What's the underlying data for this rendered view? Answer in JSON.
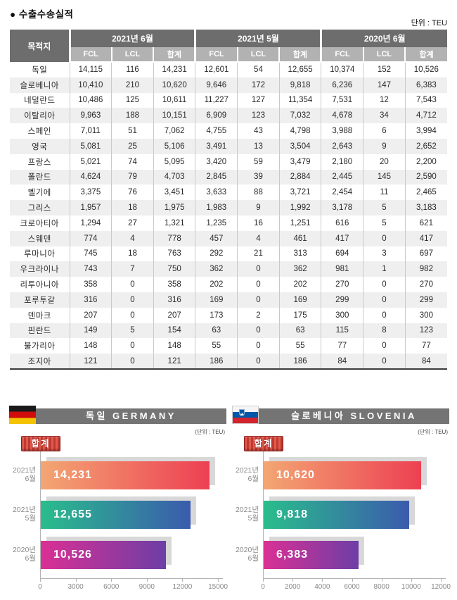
{
  "page": {
    "title": "● 수출수송실적",
    "unit": "단위 : TEU"
  },
  "table": {
    "dest_header": "목적지",
    "groups": [
      "2021년 6월",
      "2021년 5월",
      "2020년 6월"
    ],
    "sub_headers": [
      "FCL",
      "LCL",
      "합계"
    ],
    "rows": [
      {
        "dest": "독일",
        "values": [
          "14,115",
          "116",
          "14,231",
          "12,601",
          "54",
          "12,655",
          "10,374",
          "152",
          "10,526"
        ]
      },
      {
        "dest": "슬로베니아",
        "values": [
          "10,410",
          "210",
          "10,620",
          "9,646",
          "172",
          "9,818",
          "6,236",
          "147",
          "6,383"
        ]
      },
      {
        "dest": "네덜란드",
        "values": [
          "10,486",
          "125",
          "10,611",
          "11,227",
          "127",
          "11,354",
          "7,531",
          "12",
          "7,543"
        ]
      },
      {
        "dest": "이탈리아",
        "values": [
          "9,963",
          "188",
          "10,151",
          "6,909",
          "123",
          "7,032",
          "4,678",
          "34",
          "4,712"
        ]
      },
      {
        "dest": "스페인",
        "values": [
          "7,011",
          "51",
          "7,062",
          "4,755",
          "43",
          "4,798",
          "3,988",
          "6",
          "3,994"
        ]
      },
      {
        "dest": "영국",
        "values": [
          "5,081",
          "25",
          "5,106",
          "3,491",
          "13",
          "3,504",
          "2,643",
          "9",
          "2,652"
        ]
      },
      {
        "dest": "프랑스",
        "values": [
          "5,021",
          "74",
          "5,095",
          "3,420",
          "59",
          "3,479",
          "2,180",
          "20",
          "2,200"
        ]
      },
      {
        "dest": "폴란드",
        "values": [
          "4,624",
          "79",
          "4,703",
          "2,845",
          "39",
          "2,884",
          "2,445",
          "145",
          "2,590"
        ]
      },
      {
        "dest": "벨기에",
        "values": [
          "3,375",
          "76",
          "3,451",
          "3,633",
          "88",
          "3,721",
          "2,454",
          "11",
          "2,465"
        ]
      },
      {
        "dest": "그리스",
        "values": [
          "1,957",
          "18",
          "1,975",
          "1,983",
          "9",
          "1,992",
          "3,178",
          "5",
          "3,183"
        ]
      },
      {
        "dest": "크로아티아",
        "values": [
          "1,294",
          "27",
          "1,321",
          "1,235",
          "16",
          "1,251",
          "616",
          "5",
          "621"
        ]
      },
      {
        "dest": "스웨덴",
        "values": [
          "774",
          "4",
          "778",
          "457",
          "4",
          "461",
          "417",
          "0",
          "417"
        ]
      },
      {
        "dest": "루마니아",
        "values": [
          "745",
          "18",
          "763",
          "292",
          "21",
          "313",
          "694",
          "3",
          "697"
        ]
      },
      {
        "dest": "우크라이나",
        "values": [
          "743",
          "7",
          "750",
          "362",
          "0",
          "362",
          "981",
          "1",
          "982"
        ]
      },
      {
        "dest": "리투아니아",
        "values": [
          "358",
          "0",
          "358",
          "202",
          "0",
          "202",
          "270",
          "0",
          "270"
        ]
      },
      {
        "dest": "포루투갈",
        "values": [
          "316",
          "0",
          "316",
          "169",
          "0",
          "169",
          "299",
          "0",
          "299"
        ]
      },
      {
        "dest": "덴마크",
        "values": [
          "207",
          "0",
          "207",
          "173",
          "2",
          "175",
          "300",
          "0",
          "300"
        ]
      },
      {
        "dest": "핀란드",
        "values": [
          "149",
          "5",
          "154",
          "63",
          "0",
          "63",
          "115",
          "8",
          "123"
        ]
      },
      {
        "dest": "불가리아",
        "values": [
          "148",
          "0",
          "148",
          "55",
          "0",
          "55",
          "77",
          "0",
          "77"
        ]
      },
      {
        "dest": "조지아",
        "values": [
          "121",
          "0",
          "121",
          "186",
          "0",
          "186",
          "84",
          "0",
          "84"
        ]
      }
    ]
  },
  "charts": [
    {
      "flag": "germany-flag",
      "title": "독일 GERMANY",
      "unit": "(단위 : TEU)",
      "badge": "합계",
      "chart_data": {
        "type": "bar",
        "orientation": "horizontal",
        "categories": [
          [
            "2021년",
            "6월"
          ],
          [
            "2021년",
            "5월"
          ],
          [
            "2020년",
            "6월"
          ]
        ],
        "values": [
          14231,
          12655,
          10526
        ],
        "value_labels": [
          "14,231",
          "12,655",
          "10,526"
        ],
        "xlim": [
          0,
          15000
        ],
        "ticks": [
          0,
          3000,
          6000,
          9000,
          12000,
          15000
        ],
        "bar_gradients": [
          [
            "#f3a673",
            "#ed4053"
          ],
          [
            "#2abd8c",
            "#3b5bad"
          ],
          [
            "#da3094",
            "#6d3ea6"
          ]
        ]
      }
    },
    {
      "flag": "slovenia-flag",
      "title": "슬로베니아 SLOVENIA",
      "unit": "(단위 : TEU)",
      "badge": "합계",
      "chart_data": {
        "type": "bar",
        "orientation": "horizontal",
        "categories": [
          [
            "2021년",
            "6월"
          ],
          [
            "2021년",
            "5월"
          ],
          [
            "2020년",
            "6월"
          ]
        ],
        "values": [
          10620,
          9818,
          6383
        ],
        "value_labels": [
          "10,620",
          "9,818",
          "6,383"
        ],
        "xlim": [
          0,
          12000
        ],
        "ticks": [
          0,
          2000,
          4000,
          6000,
          8000,
          10000,
          12000
        ],
        "bar_gradients": [
          [
            "#f3a673",
            "#ed4053"
          ],
          [
            "#2abd8c",
            "#3b5bad"
          ],
          [
            "#da3094",
            "#6d3ea6"
          ]
        ]
      }
    }
  ]
}
